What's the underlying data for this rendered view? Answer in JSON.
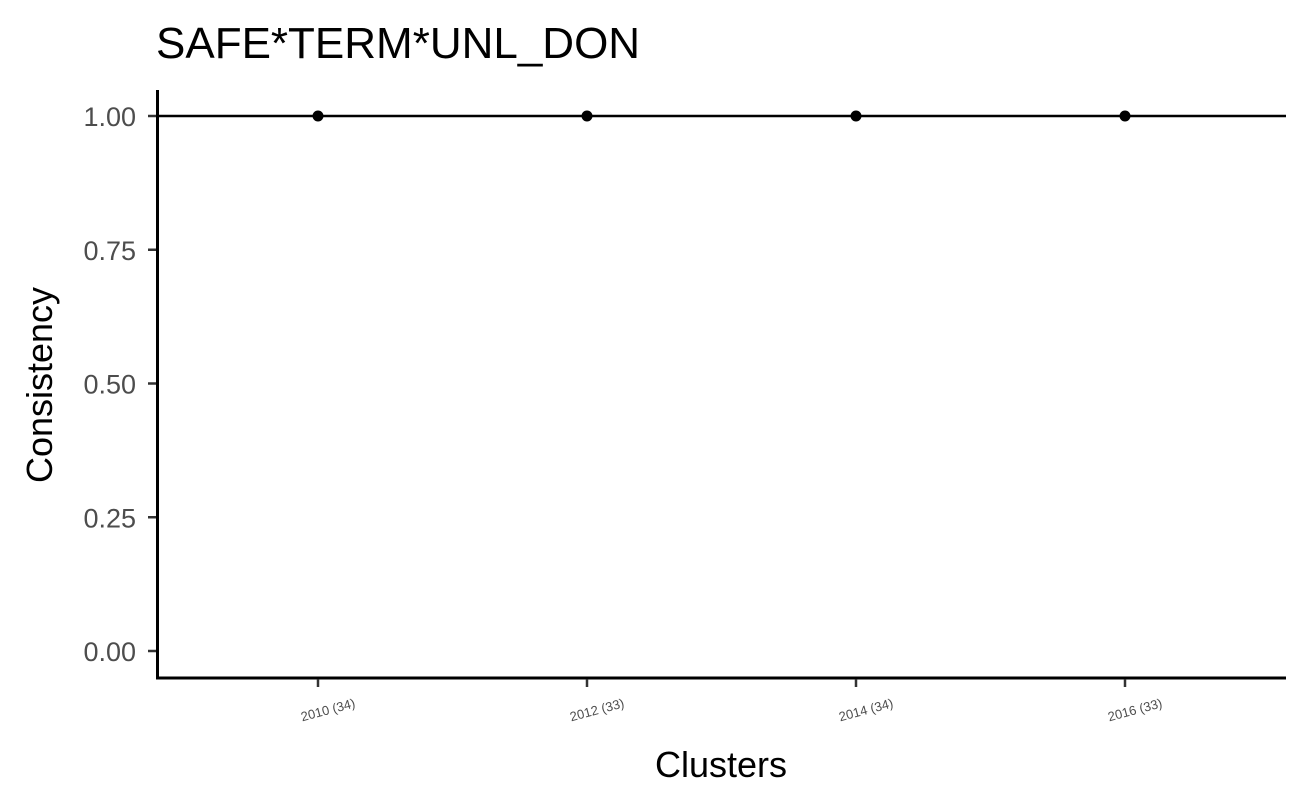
{
  "chart_data": {
    "type": "scatter",
    "title": "SAFE*TERM*UNL_DON",
    "xlabel": "Clusters",
    "ylabel": "Consistency",
    "categories": [
      "2010 (34)",
      "2012 (33)",
      "2014 (34)",
      "2016 (33)"
    ],
    "series": [
      {
        "values": [
          1.0,
          1.0,
          1.0,
          1.0
        ]
      }
    ],
    "reference_line": {
      "y": 1.0
    },
    "ylim": [
      0,
      1
    ],
    "yticks": [
      "0.00",
      "0.25",
      "0.50",
      "0.75",
      "1.00"
    ],
    "grid": false,
    "legend": "none",
    "colors": {
      "points": "#000000",
      "axes": "#000000",
      "tick_text": "#4d4d4d"
    }
  }
}
